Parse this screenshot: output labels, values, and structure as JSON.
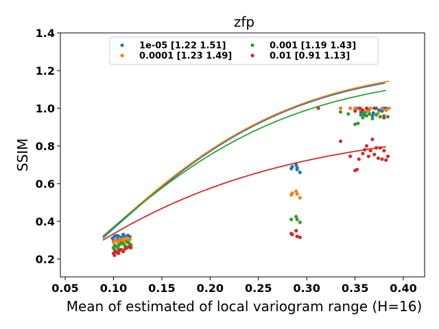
{
  "chart_data": {
    "type": "scatter",
    "title": "zfp",
    "xlabel": "Mean of estimated of local variogram range (H=16)",
    "ylabel": "SSIM",
    "xlim": [
      0.045,
      0.422
    ],
    "ylim": [
      0.105,
      1.4
    ],
    "xticks": [
      0.05,
      0.1,
      0.15,
      0.2,
      0.25,
      0.3,
      0.35,
      0.4
    ],
    "xtick_labels": [
      "0.05",
      "0.10",
      "0.15",
      "0.20",
      "0.25",
      "0.30",
      "0.35",
      "0.40"
    ],
    "yticks": [
      0.2,
      0.4,
      0.6,
      0.8,
      1.0,
      1.2,
      1.4
    ],
    "ytick_labels": [
      "0.2",
      "0.4",
      "0.6",
      "0.8",
      "1.0",
      "1.2",
      "1.4"
    ],
    "grid": false,
    "legend_position": "top-center",
    "legend_columns": 2,
    "series": [
      {
        "name": "1e-05 [1.22 1.51]",
        "color": "#1f77b4",
        "fit": {
          "a": 1.22,
          "b": 1.51,
          "x_range": [
            0.089,
            0.381
          ]
        },
        "points": [
          [
            0.101,
            0.32
          ],
          [
            0.103,
            0.325
          ],
          [
            0.105,
            0.322
          ],
          [
            0.099,
            0.31
          ],
          [
            0.104,
            0.305
          ],
          [
            0.108,
            0.315
          ],
          [
            0.11,
            0.33
          ],
          [
            0.112,
            0.32
          ],
          [
            0.115,
            0.325
          ],
          [
            0.117,
            0.318
          ],
          [
            0.1,
            0.295
          ],
          [
            0.106,
            0.3
          ],
          [
            0.109,
            0.312
          ],
          [
            0.113,
            0.3
          ],
          [
            0.284,
            0.68
          ],
          [
            0.285,
            0.69
          ],
          [
            0.289,
            0.7
          ],
          [
            0.29,
            0.685
          ],
          [
            0.293,
            0.66
          ],
          [
            0.29,
            0.675
          ],
          [
            0.335,
            1.0
          ],
          [
            0.345,
            1.0
          ],
          [
            0.352,
            1.0
          ],
          [
            0.356,
            0.98
          ],
          [
            0.358,
            0.97
          ],
          [
            0.362,
            1.0
          ],
          [
            0.364,
            0.99
          ],
          [
            0.366,
            1.0
          ],
          [
            0.369,
            0.975
          ],
          [
            0.372,
            1.0
          ],
          [
            0.375,
            0.99
          ],
          [
            0.378,
            0.985
          ],
          [
            0.38,
            1.0
          ],
          [
            0.368,
            0.96
          ],
          [
            0.36,
            0.965
          ],
          [
            0.382,
            1.0
          ]
        ]
      },
      {
        "name": "0.0001 [1.23 1.49]",
        "color": "#ff7f0e",
        "fit": {
          "a": 1.23,
          "b": 1.49,
          "x_range": [
            0.089,
            0.385
          ]
        },
        "points": [
          [
            0.1,
            0.29
          ],
          [
            0.102,
            0.3
          ],
          [
            0.104,
            0.295
          ],
          [
            0.105,
            0.285
          ],
          [
            0.107,
            0.3
          ],
          [
            0.109,
            0.305
          ],
          [
            0.111,
            0.295
          ],
          [
            0.113,
            0.31
          ],
          [
            0.115,
            0.3
          ],
          [
            0.117,
            0.305
          ],
          [
            0.101,
            0.275
          ],
          [
            0.108,
            0.29
          ],
          [
            0.284,
            0.54
          ],
          [
            0.285,
            0.55
          ],
          [
            0.289,
            0.56
          ],
          [
            0.29,
            0.545
          ],
          [
            0.293,
            0.525
          ],
          [
            0.335,
            1.0
          ],
          [
            0.345,
            1.0
          ],
          [
            0.35,
            1.0
          ],
          [
            0.354,
            1.0
          ],
          [
            0.358,
            0.99
          ],
          [
            0.362,
            0.985
          ],
          [
            0.366,
            1.0
          ],
          [
            0.37,
            1.0
          ],
          [
            0.374,
            0.975
          ],
          [
            0.378,
            1.0
          ],
          [
            0.382,
            0.99
          ],
          [
            0.385,
            1.0
          ],
          [
            0.356,
            0.995
          ],
          [
            0.364,
            0.98
          ]
        ]
      },
      {
        "name": "0.001 [1.19 1.43]",
        "color": "#2ca02c",
        "fit": {
          "a": 1.19,
          "b": 1.43,
          "x_range": [
            0.089,
            0.382
          ]
        },
        "points": [
          [
            0.1,
            0.26
          ],
          [
            0.102,
            0.27
          ],
          [
            0.104,
            0.265
          ],
          [
            0.106,
            0.275
          ],
          [
            0.108,
            0.285
          ],
          [
            0.11,
            0.28
          ],
          [
            0.112,
            0.27
          ],
          [
            0.114,
            0.29
          ],
          [
            0.116,
            0.285
          ],
          [
            0.118,
            0.275
          ],
          [
            0.101,
            0.25
          ],
          [
            0.105,
            0.255
          ],
          [
            0.284,
            0.41
          ],
          [
            0.289,
            0.425
          ],
          [
            0.29,
            0.41
          ],
          [
            0.293,
            0.395
          ],
          [
            0.335,
            0.98
          ],
          [
            0.343,
            0.97
          ],
          [
            0.35,
            0.915
          ],
          [
            0.353,
            0.92
          ],
          [
            0.356,
            0.965
          ],
          [
            0.358,
            0.95
          ],
          [
            0.362,
            0.96
          ],
          [
            0.365,
            0.97
          ],
          [
            0.368,
            0.945
          ],
          [
            0.372,
            0.965
          ],
          [
            0.376,
            0.955
          ],
          [
            0.38,
            0.96
          ],
          [
            0.384,
            0.955
          ],
          [
            0.36,
            0.975
          ]
        ]
      },
      {
        "name": "0.01 [0.91 1.13]",
        "color": "#d62728",
        "fit": {
          "a": 0.91,
          "b": 1.13,
          "x_range": [
            0.089,
            0.382
          ]
        },
        "points": [
          [
            0.1,
            0.23
          ],
          [
            0.102,
            0.24
          ],
          [
            0.104,
            0.235
          ],
          [
            0.106,
            0.245
          ],
          [
            0.108,
            0.25
          ],
          [
            0.11,
            0.24
          ],
          [
            0.112,
            0.255
          ],
          [
            0.114,
            0.26
          ],
          [
            0.116,
            0.265
          ],
          [
            0.118,
            0.26
          ],
          [
            0.101,
            0.22
          ],
          [
            0.105,
            0.23
          ],
          [
            0.284,
            0.335
          ],
          [
            0.285,
            0.33
          ],
          [
            0.289,
            0.35
          ],
          [
            0.29,
            0.32
          ],
          [
            0.293,
            0.315
          ],
          [
            0.312,
            1.0
          ],
          [
            0.335,
            0.825
          ],
          [
            0.345,
            0.745
          ],
          [
            0.35,
            0.67
          ],
          [
            0.352,
            0.675
          ],
          [
            0.354,
            0.73
          ],
          [
            0.358,
            0.76
          ],
          [
            0.36,
            0.78
          ],
          [
            0.362,
            0.8
          ],
          [
            0.364,
            0.745
          ],
          [
            0.366,
            0.775
          ],
          [
            0.368,
            0.835
          ],
          [
            0.37,
            0.755
          ],
          [
            0.372,
            0.79
          ],
          [
            0.374,
            0.735
          ],
          [
            0.376,
            0.79
          ],
          [
            0.378,
            0.73
          ],
          [
            0.38,
            0.775
          ],
          [
            0.382,
            0.725
          ],
          [
            0.384,
            0.745
          ],
          [
            0.355,
            1.0
          ],
          [
            0.362,
            1.0
          ],
          [
            0.37,
            1.0
          ],
          [
            0.358,
            0.99
          ],
          [
            0.38,
            0.95
          ],
          [
            0.35,
            0.985
          ]
        ]
      }
    ]
  }
}
